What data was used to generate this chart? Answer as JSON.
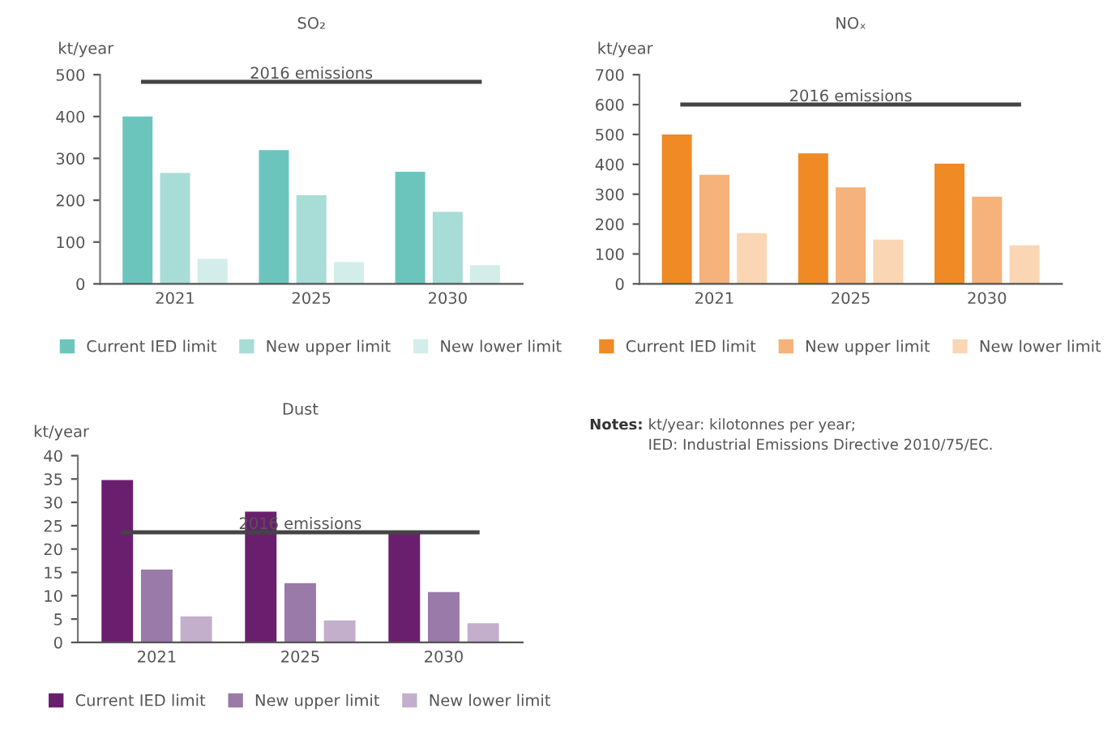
{
  "chart_data": [
    {
      "type": "bar",
      "title": "SO₂",
      "ylabel": "kt/year",
      "categories": [
        "2021",
        "2025",
        "2030"
      ],
      "ylim": [
        0,
        500
      ],
      "yticks": [
        0,
        100,
        200,
        300,
        400,
        500
      ],
      "grid": false,
      "legend": "bottom",
      "series": [
        {
          "name": "Current IED limit",
          "color": "#6cc5bd",
          "values": [
            400,
            320,
            268
          ]
        },
        {
          "name": "New upper limit",
          "color": "#a8dcd6",
          "values": [
            265,
            212,
            172
          ]
        },
        {
          "name": "New lower limit",
          "color": "#d3eeea",
          "values": [
            60,
            52,
            45
          ]
        }
      ],
      "ref_lines": [
        {
          "axis": "y",
          "value": 483,
          "label": "2016 emissions",
          "color": "#444444"
        }
      ]
    },
    {
      "type": "bar",
      "title": "NOₓ",
      "ylabel": "kt/year",
      "categories": [
        "2021",
        "2025",
        "2030"
      ],
      "ylim": [
        0,
        700
      ],
      "yticks": [
        0,
        100,
        200,
        300,
        400,
        500,
        600,
        700
      ],
      "grid": false,
      "legend": "bottom",
      "series": [
        {
          "name": "Current IED limit",
          "color": "#f08a24",
          "values": [
            500,
            437,
            402
          ]
        },
        {
          "name": "New upper limit",
          "color": "#f5b27a",
          "values": [
            365,
            323,
            292
          ]
        },
        {
          "name": "New lower limit",
          "color": "#fad6b4",
          "values": [
            170,
            148,
            129
          ]
        }
      ],
      "ref_lines": [
        {
          "axis": "y",
          "value": 600,
          "label": "2016 emissions",
          "color": "#444444"
        }
      ]
    },
    {
      "type": "bar",
      "title": "Dust",
      "ylabel": "kt/year",
      "categories": [
        "2021",
        "2025",
        "2030"
      ],
      "ylim": [
        0,
        40
      ],
      "yticks": [
        0,
        5,
        10,
        15,
        20,
        25,
        30,
        35,
        40
      ],
      "grid": false,
      "legend": "bottom",
      "series": [
        {
          "name": "Current IED limit",
          "color": "#6a1f6e",
          "values": [
            34.8,
            28,
            23.7
          ]
        },
        {
          "name": "New upper limit",
          "color": "#9a7aa8",
          "values": [
            15.6,
            12.7,
            10.8
          ]
        },
        {
          "name": "New lower limit",
          "color": "#c3afcc",
          "values": [
            5.6,
            4.7,
            4.1
          ]
        }
      ],
      "ref_lines": [
        {
          "axis": "y",
          "value": 23.6,
          "label": "2016 emissions",
          "color": "#444444"
        }
      ]
    },
    {
      "type": "other",
      "annotations": [
        "Notes:",
        "kt/year: kilotonnes per year;",
        "IED: Industrial Emissions Directive 2010/75/EC."
      ]
    }
  ]
}
